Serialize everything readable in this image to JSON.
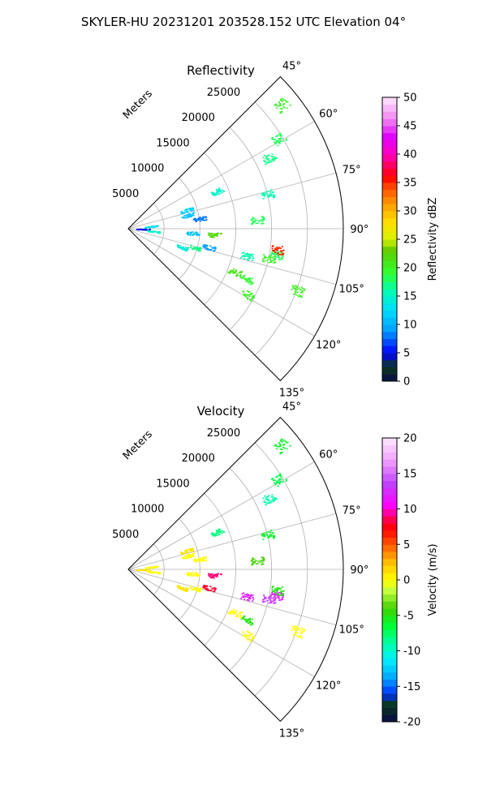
{
  "suptitle": "SKYLER-HU  20231201  203528.152 UTC Elevation 04°",
  "chart_data": [
    {
      "type": "heatmap",
      "subtype": "polar-sector-radar",
      "title": "Reflectivity",
      "radial_label": "Meters",
      "theta_range_deg": [
        45,
        135
      ],
      "r_range_m": [
        0,
        30000
      ],
      "theta_ticks": [
        "45°",
        "60°",
        "75°",
        "90°",
        "105°",
        "120°",
        "135°"
      ],
      "r_ticks": [
        "5000",
        "10000",
        "15000",
        "20000",
        "25000"
      ],
      "colorbar": {
        "label": "Reflectivity dBZ",
        "range": [
          0,
          50
        ],
        "ticks": [
          "0",
          "5",
          "10",
          "15",
          "20",
          "25",
          "30",
          "35",
          "40",
          "45",
          "50"
        ]
      },
      "echoes": [
        {
          "range_m": 2000,
          "azimuth_deg": 91,
          "value": 5
        },
        {
          "range_m": 3200,
          "azimuth_deg": 84,
          "value": 13
        },
        {
          "range_m": 3500,
          "azimuth_deg": 96,
          "value": 15
        },
        {
          "range_m": 8500,
          "azimuth_deg": 72,
          "value": 12
        },
        {
          "range_m": 8500,
          "azimuth_deg": 77,
          "value": 11
        },
        {
          "range_m": 10000,
          "azimuth_deg": 82,
          "value": 8
        },
        {
          "range_m": 8000,
          "azimuth_deg": 109,
          "value": 14
        },
        {
          "range_m": 9500,
          "azimuth_deg": 106,
          "value": 17
        },
        {
          "range_m": 9000,
          "azimuth_deg": 94,
          "value": 11
        },
        {
          "range_m": 11500,
          "azimuth_deg": 103,
          "value": 9
        },
        {
          "range_m": 12000,
          "azimuth_deg": 94,
          "value": 22
        },
        {
          "range_m": 17000,
          "azimuth_deg": 103,
          "value": 16
        },
        {
          "range_m": 20000,
          "azimuth_deg": 102,
          "value": 20
        },
        {
          "range_m": 21000,
          "azimuth_deg": 100,
          "value": 18
        },
        {
          "range_m": 21000,
          "azimuth_deg": 98,
          "value": 35
        },
        {
          "range_m": 16000,
          "azimuth_deg": 112,
          "value": 21
        },
        {
          "range_m": 18000,
          "azimuth_deg": 113,
          "value": 19
        },
        {
          "range_m": 19000,
          "azimuth_deg": 119,
          "value": 20
        },
        {
          "range_m": 25000,
          "azimuth_deg": 110,
          "value": 20
        },
        {
          "range_m": 27500,
          "azimuth_deg": 51,
          "value": 20
        },
        {
          "range_m": 24500,
          "azimuth_deg": 59,
          "value": 18
        },
        {
          "range_m": 22000,
          "azimuth_deg": 63,
          "value": 17
        },
        {
          "range_m": 20000,
          "azimuth_deg": 76,
          "value": 16
        },
        {
          "range_m": 18000,
          "azimuth_deg": 86,
          "value": 18
        },
        {
          "range_m": 13500,
          "azimuth_deg": 67,
          "value": 15
        }
      ]
    },
    {
      "type": "heatmap",
      "subtype": "polar-sector-radar",
      "title": "Velocity",
      "radial_label": "Meters",
      "theta_range_deg": [
        45,
        135
      ],
      "r_range_m": [
        0,
        30000
      ],
      "theta_ticks": [
        "45°",
        "60°",
        "75°",
        "90°",
        "105°",
        "120°",
        "135°"
      ],
      "r_ticks": [
        "5000",
        "10000",
        "15000",
        "20000",
        "25000"
      ],
      "colorbar": {
        "label": "Velocity (m/s)",
        "range": [
          -20,
          20
        ],
        "ticks": [
          "-20",
          "-15",
          "-10",
          "-5",
          "0",
          "5",
          "10",
          "15",
          "20"
        ]
      },
      "echoes": [
        {
          "range_m": 2000,
          "azimuth_deg": 91,
          "value": 1
        },
        {
          "range_m": 3200,
          "azimuth_deg": 84,
          "value": 0
        },
        {
          "range_m": 3500,
          "azimuth_deg": 96,
          "value": 0
        },
        {
          "range_m": 8500,
          "azimuth_deg": 72,
          "value": 1
        },
        {
          "range_m": 8500,
          "azimuth_deg": 77,
          "value": 0
        },
        {
          "range_m": 10000,
          "azimuth_deg": 82,
          "value": 0
        },
        {
          "range_m": 8000,
          "azimuth_deg": 109,
          "value": 1
        },
        {
          "range_m": 9500,
          "azimuth_deg": 106,
          "value": 0
        },
        {
          "range_m": 9000,
          "azimuth_deg": 94,
          "value": 0
        },
        {
          "range_m": 11500,
          "azimuth_deg": 103,
          "value": 8
        },
        {
          "range_m": 12000,
          "azimuth_deg": 94,
          "value": 9
        },
        {
          "range_m": 17000,
          "azimuth_deg": 103,
          "value": 12
        },
        {
          "range_m": 20000,
          "azimuth_deg": 102,
          "value": 13
        },
        {
          "range_m": 21000,
          "azimuth_deg": 100,
          "value": 12
        },
        {
          "range_m": 21000,
          "azimuth_deg": 98,
          "value": -5
        },
        {
          "range_m": 16000,
          "azimuth_deg": 112,
          "value": 0
        },
        {
          "range_m": 18000,
          "azimuth_deg": 113,
          "value": -5
        },
        {
          "range_m": 19000,
          "azimuth_deg": 119,
          "value": 0
        },
        {
          "range_m": 25000,
          "azimuth_deg": 110,
          "value": 0
        },
        {
          "range_m": 27500,
          "azimuth_deg": 51,
          "value": -6
        },
        {
          "range_m": 24500,
          "azimuth_deg": 59,
          "value": -7
        },
        {
          "range_m": 22000,
          "azimuth_deg": 63,
          "value": -9
        },
        {
          "range_m": 20000,
          "azimuth_deg": 76,
          "value": -6
        },
        {
          "range_m": 18000,
          "azimuth_deg": 86,
          "value": -4
        },
        {
          "range_m": 13500,
          "azimuth_deg": 67,
          "value": -8
        }
      ]
    }
  ]
}
